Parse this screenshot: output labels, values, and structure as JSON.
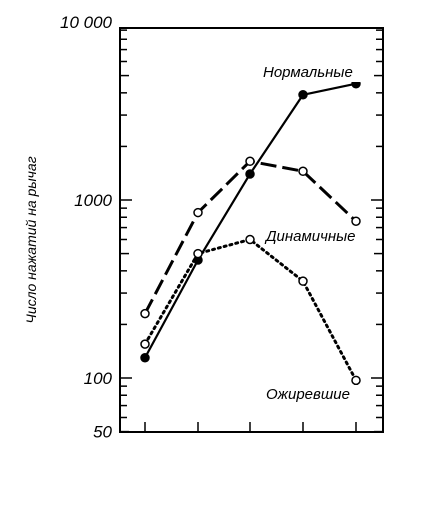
{
  "chart_data": {
    "type": "line",
    "ylabel": "Число нажатий на рычаг",
    "yscale": "log",
    "ylim": [
      50,
      10000
    ],
    "y_tick_labels": [
      "10 000",
      "1000",
      "100",
      "50"
    ],
    "y_tick_values": [
      10000,
      1000,
      100,
      50
    ],
    "x": [
      1,
      2,
      3,
      4,
      5
    ],
    "grid": false,
    "series": [
      {
        "name": "Нормальные",
        "style": "solid",
        "marker": "filled",
        "values": [
          130,
          460,
          1400,
          3900,
          4500
        ]
      },
      {
        "name": "Динамичные",
        "style": "dashed",
        "marker": "open",
        "values": [
          230,
          850,
          1650,
          1450,
          760
        ]
      },
      {
        "name": "Ожиревшие",
        "style": "dotted",
        "marker": "open",
        "values": [
          155,
          500,
          600,
          350,
          97
        ]
      }
    ]
  }
}
